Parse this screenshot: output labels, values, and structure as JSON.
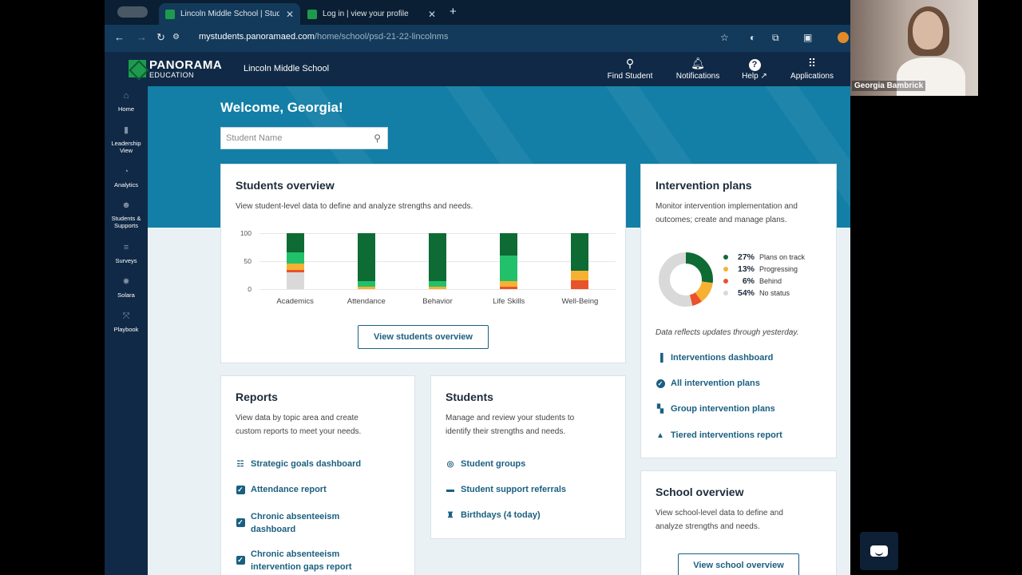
{
  "browser": {
    "tabs": [
      {
        "title": "Lincoln Middle School | Stude",
        "active": true
      },
      {
        "title": "Log in | view your profile",
        "active": false
      }
    ],
    "url_host": "mystudents.panoramaed.com",
    "url_path": "/home/school/psd-21-22-lincolnms"
  },
  "header": {
    "logo_name": "PANORAMA",
    "logo_sub": "EDUCATION",
    "school": "Lincoln Middle School",
    "find_student": "Find Student",
    "notifications": "Notifications",
    "help": "Help",
    "applications": "Applications"
  },
  "rail": {
    "home": "Home",
    "leadership_1": "Leadership",
    "leadership_2": "View",
    "analytics": "Analytics",
    "students_supports_1": "Students &",
    "students_supports_2": "Supports",
    "surveys": "Surveys",
    "solara": "Solara",
    "playbook": "Playbook"
  },
  "welcome": "Welcome, Georgia!",
  "search": {
    "placeholder": "Student Name"
  },
  "students_overview": {
    "title": "Students overview",
    "description": "View student-level data to define and analyze strengths and needs.",
    "button": "View students overview"
  },
  "chart_data": {
    "type": "bar",
    "stacked": true,
    "categories": [
      "Academics",
      "Attendance",
      "Behavior",
      "Life Skills",
      "Well-Being"
    ],
    "yticks": [
      100,
      50,
      0
    ],
    "ylim": [
      0,
      100
    ],
    "series": [
      {
        "color": "#d9d9d9",
        "values": [
          30,
          0,
          0,
          0,
          0
        ]
      },
      {
        "color": "#e8532b",
        "values": [
          4,
          0,
          0,
          5,
          16
        ]
      },
      {
        "color": "#f6b133",
        "values": [
          12,
          5,
          5,
          9,
          17
        ]
      },
      {
        "color": "#22c06a",
        "values": [
          20,
          10,
          10,
          46,
          0
        ]
      },
      {
        "color": "#0e6b34",
        "values": [
          34,
          85,
          85,
          40,
          67
        ]
      }
    ]
  },
  "intervention": {
    "title": "Intervention plans",
    "desc_1": "Monitor intervention implementation and",
    "desc_2": "outcomes; create and manage plans.",
    "legend": [
      {
        "pct": "27%",
        "label": "Plans on track",
        "color": "#0e6b34",
        "value": 27
      },
      {
        "pct": "13%",
        "label": "Progressing",
        "color": "#f6b133",
        "value": 13
      },
      {
        "pct": "6%",
        "label": "Behind",
        "color": "#e8532b",
        "value": 6
      },
      {
        "pct": "54%",
        "label": "No status",
        "color": "#d9d9d9",
        "value": 54
      }
    ],
    "note": "Data reflects updates through yesterday.",
    "links": {
      "dashboard": "Interventions dashboard",
      "all_plans": "All intervention plans",
      "group_plans": "Group intervention plans",
      "tiered": "Tiered interventions report"
    }
  },
  "reports": {
    "title": "Reports",
    "desc_1": "View data by topic area and create",
    "desc_2": "custom reports to meet your needs.",
    "strategic": "Strategic goals dashboard",
    "attendance": "Attendance report",
    "chronic_1a": "Chronic absenteeism",
    "chronic_1b": "dashboard",
    "chronic_2a": "Chronic absenteeism",
    "chronic_2b": "intervention gaps report"
  },
  "students_card": {
    "title": "Students",
    "desc_1": "Manage and review your students to",
    "desc_2": "identify their strengths and needs.",
    "groups": "Student groups",
    "referrals": "Student support referrals",
    "birthdays": "Birthdays (4 today)"
  },
  "school_overview": {
    "title": "School overview",
    "desc_1": "View school-level data to define and",
    "desc_2": "analyze strengths and needs.",
    "button": "View school overview"
  },
  "video": {
    "name": "Georgia Bambrick"
  }
}
